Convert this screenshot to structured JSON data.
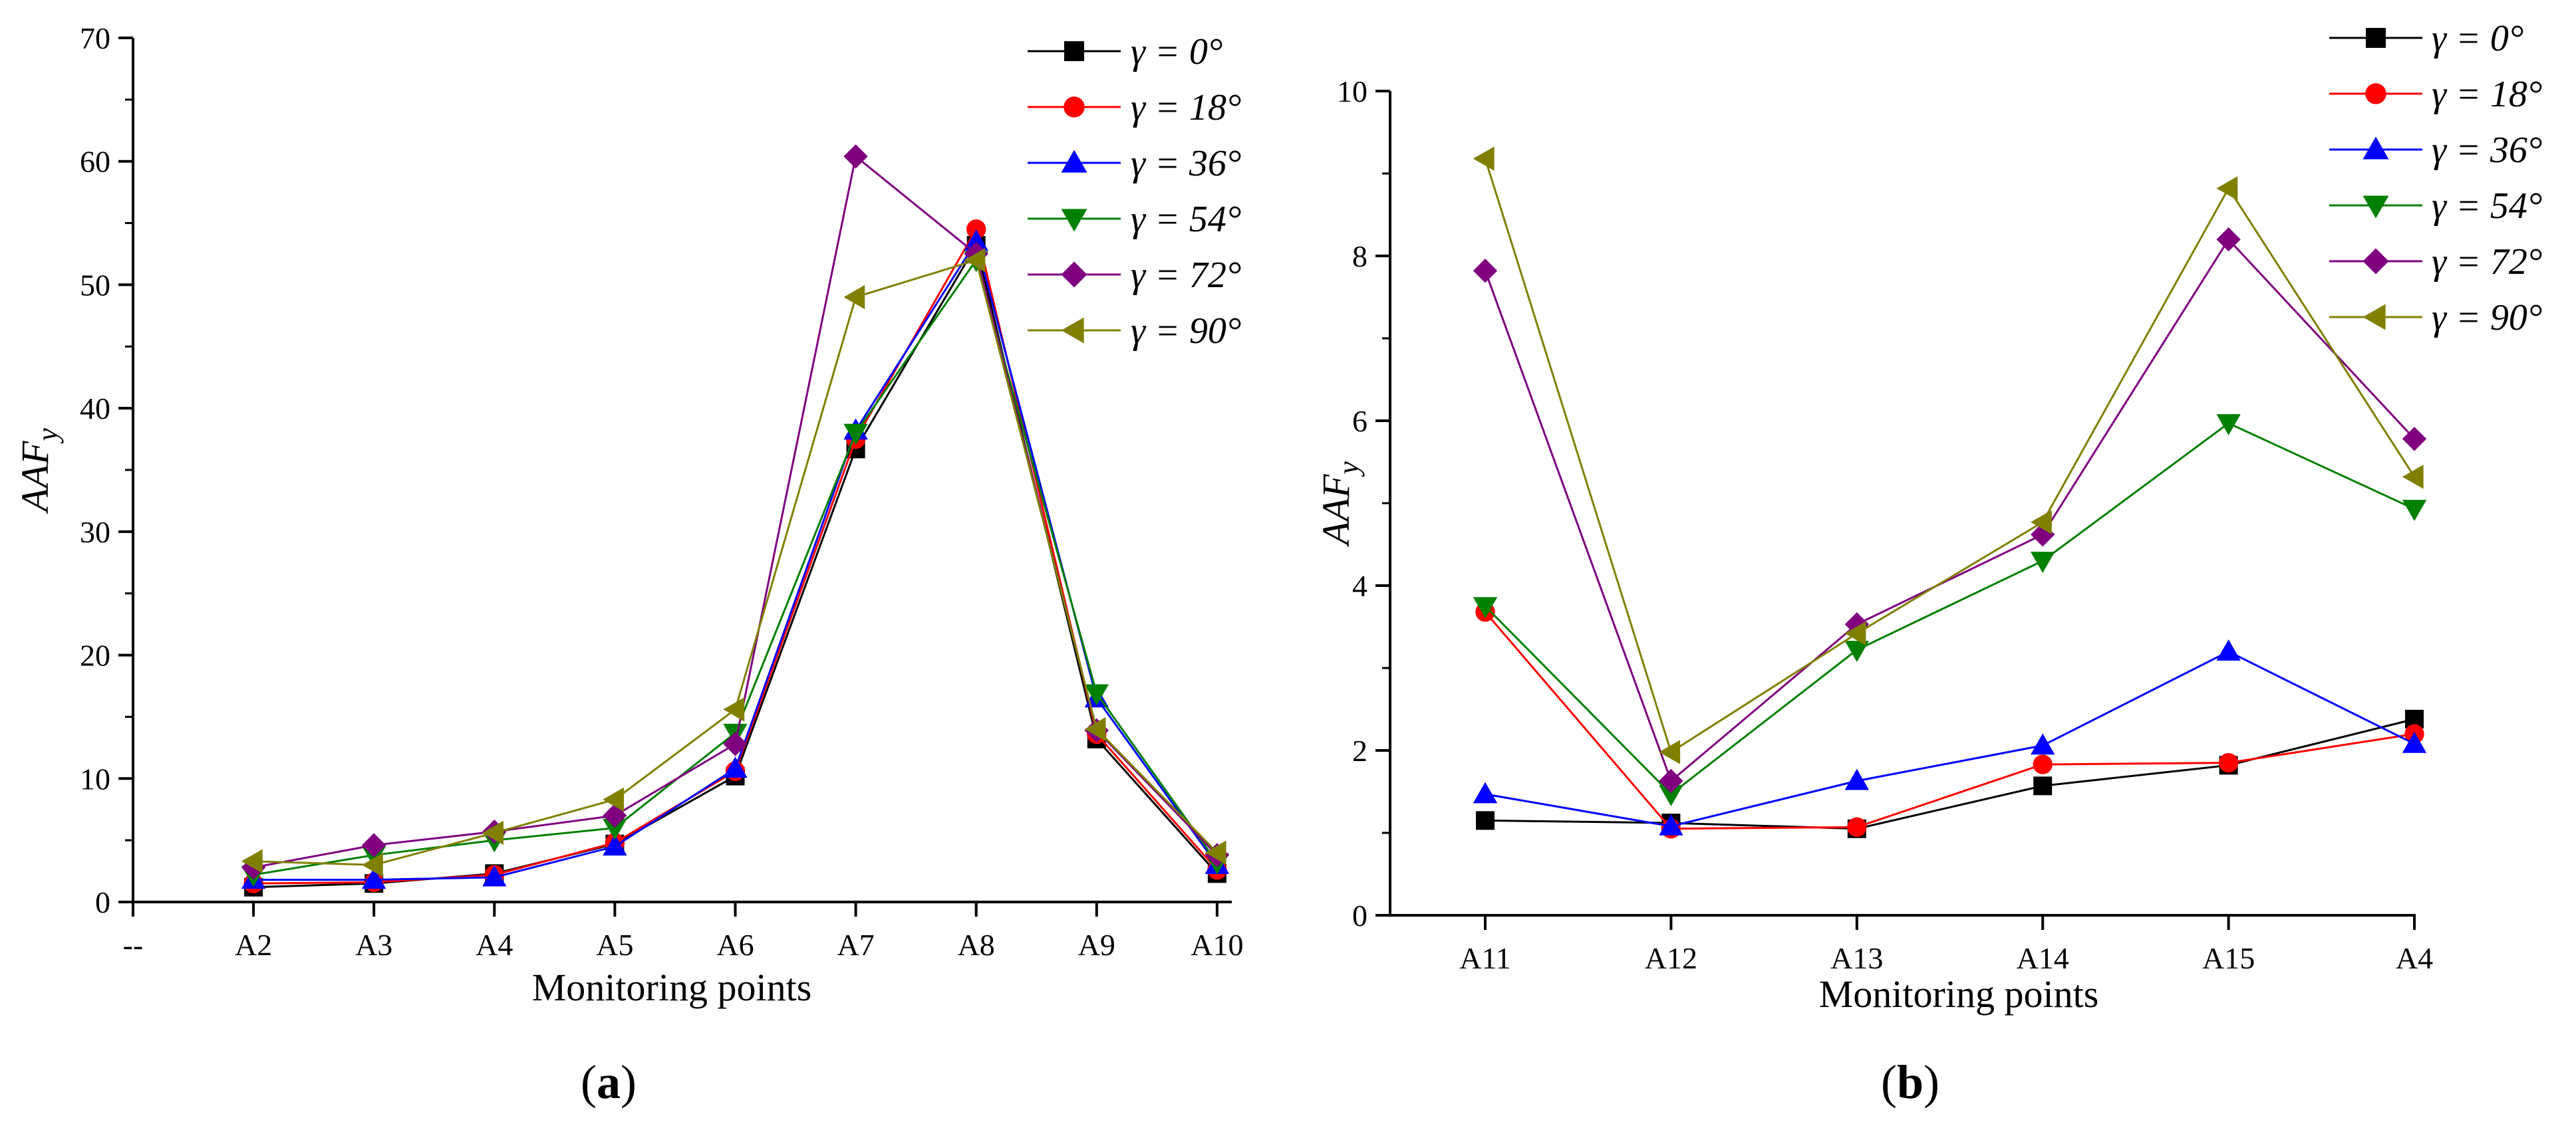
{
  "chart_data": [
    {
      "type": "line",
      "panel_label": "a",
      "ylabel": "AAF",
      "ylabel_subscript": "y",
      "xlabel": "Monitoring points",
      "categories": [
        "--",
        "A2",
        "A3",
        "A4",
        "A5",
        "A6",
        "A7",
        "A8",
        "A9",
        "A10"
      ],
      "ylim": [
        0,
        70
      ],
      "yticks": [
        0,
        10,
        20,
        30,
        40,
        50,
        60,
        70
      ],
      "grid": false,
      "legend_position": "top-right",
      "series": [
        {
          "name": "γ = 0°",
          "color": "#000000",
          "marker": "square",
          "values": [
            null,
            1.2,
            1.5,
            2.3,
            4.7,
            10.2,
            36.7,
            53.2,
            13.2,
            2.3
          ]
        },
        {
          "name": "γ = 18°",
          "color": "#ff0000",
          "marker": "circle",
          "values": [
            null,
            1.5,
            1.6,
            2.2,
            4.8,
            10.6,
            37.5,
            54.5,
            13.6,
            2.6
          ]
        },
        {
          "name": "γ = 36°",
          "color": "#0000ff",
          "marker": "triangle-up",
          "values": [
            null,
            1.8,
            1.8,
            2.0,
            4.5,
            10.8,
            38.2,
            53.5,
            16.5,
            3.0
          ]
        },
        {
          "name": "γ = 54°",
          "color": "#008000",
          "marker": "triangle-down",
          "values": [
            null,
            2.2,
            3.8,
            5.0,
            6.0,
            13.7,
            38.0,
            52.0,
            16.9,
            3.2
          ]
        },
        {
          "name": "γ = 72°",
          "color": "#800080",
          "marker": "diamond",
          "values": [
            null,
            2.8,
            4.6,
            5.7,
            7.0,
            12.8,
            60.4,
            52.5,
            13.9,
            3.8
          ]
        },
        {
          "name": "γ = 90°",
          "color": "#808000",
          "marker": "triangle-left",
          "values": [
            null,
            3.3,
            3.0,
            5.6,
            8.3,
            15.6,
            49.0,
            52.0,
            14.0,
            4.0
          ]
        }
      ]
    },
    {
      "type": "line",
      "panel_label": "b",
      "ylabel": "AAF",
      "ylabel_subscript": "y",
      "xlabel": "Monitoring points",
      "categories": [
        "A11",
        "A12",
        "A13",
        "A14",
        "A15",
        "A4"
      ],
      "ylim": [
        0,
        10
      ],
      "yticks": [
        0,
        2,
        4,
        6,
        8,
        10
      ],
      "grid": false,
      "legend_position": "top-right",
      "series": [
        {
          "name": "γ = 0°",
          "color": "#000000",
          "marker": "square",
          "values": [
            1.15,
            1.12,
            1.05,
            1.57,
            1.82,
            2.38
          ]
        },
        {
          "name": "γ = 18°",
          "color": "#ff0000",
          "marker": "circle",
          "values": [
            3.68,
            1.05,
            1.07,
            1.83,
            1.85,
            2.2
          ]
        },
        {
          "name": "γ = 36°",
          "color": "#0000ff",
          "marker": "triangle-up",
          "values": [
            1.47,
            1.08,
            1.63,
            2.06,
            3.2,
            2.08
          ]
        },
        {
          "name": "γ = 54°",
          "color": "#008000",
          "marker": "triangle-down",
          "values": [
            3.75,
            1.47,
            3.22,
            4.3,
            5.97,
            4.93
          ]
        },
        {
          "name": "γ = 72°",
          "color": "#800080",
          "marker": "diamond",
          "values": [
            7.82,
            1.63,
            3.53,
            4.62,
            8.2,
            5.78
          ]
        },
        {
          "name": "γ = 90°",
          "color": "#808000",
          "marker": "triangle-left",
          "values": [
            9.18,
            1.98,
            3.42,
            4.77,
            8.82,
            5.32
          ]
        }
      ]
    }
  ]
}
